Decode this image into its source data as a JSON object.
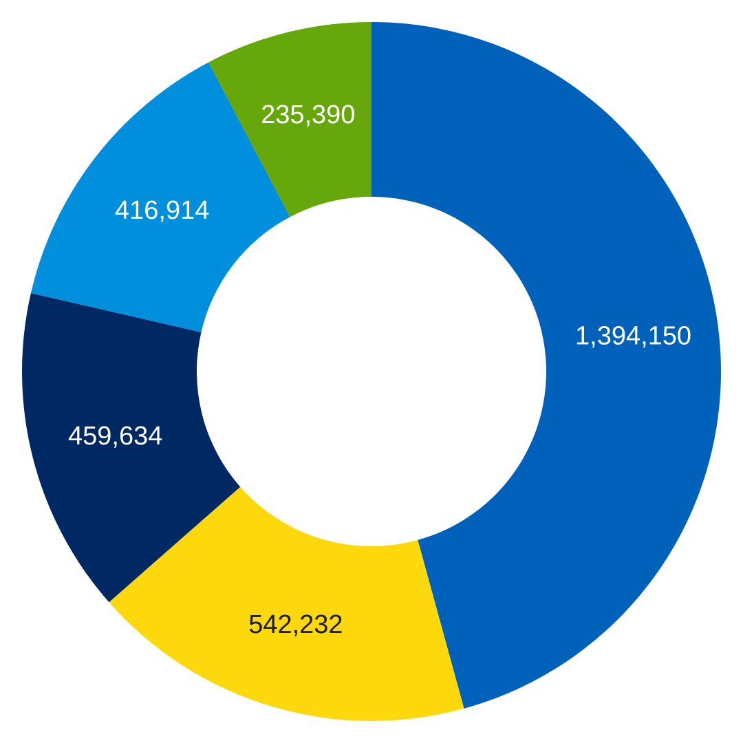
{
  "chart_data": {
    "type": "pie",
    "variant": "donut",
    "start_direction": "top",
    "rotation": "clockwise",
    "legend": "none",
    "title": "",
    "slices": [
      {
        "label": "1,394,150",
        "value": 1394150,
        "color": "#0061BB",
        "text_color": "#FFFFFF"
      },
      {
        "label": "542,232",
        "value": 542232,
        "color": "#FCD80C",
        "text_color": "#1A1A1A"
      },
      {
        "label": "459,634",
        "value": 459634,
        "color": "#002863",
        "text_color": "#FFFFFF"
      },
      {
        "label": "416,914",
        "value": 416914,
        "color": "#008FDC",
        "text_color": "#FFFFFF"
      },
      {
        "label": "235,390",
        "value": 235390,
        "color": "#66A70B",
        "text_color": "#FFFFFF"
      }
    ]
  }
}
